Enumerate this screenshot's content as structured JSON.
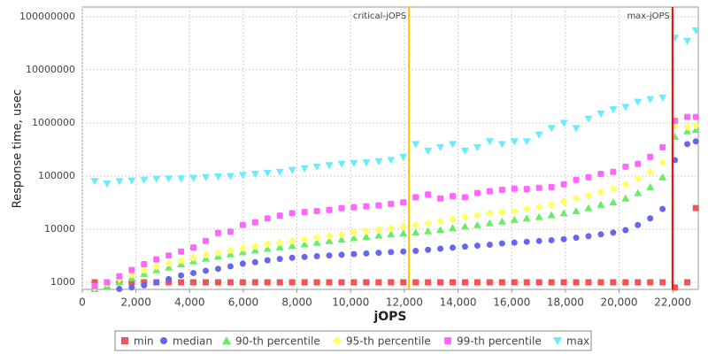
{
  "chart_data": {
    "type": "scatter",
    "x_label": "jOPS",
    "y_label": "Response time, usec",
    "log_y": true,
    "grid": true,
    "legend": "bottom",
    "xlim": [
      0,
      22950
    ],
    "ylim": [
      736,
      152000000
    ],
    "xticks": [
      0,
      {
        "value": 2000,
        "label": "2,000"
      },
      {
        "value": 4000,
        "label": "4,000"
      },
      {
        "value": 6000,
        "label": "6,000"
      },
      {
        "value": 8000,
        "label": "8,000"
      },
      {
        "value": 10000,
        "label": "10,000"
      },
      {
        "value": 12000,
        "label": "12,000"
      },
      {
        "value": 14000,
        "label": "14,000"
      },
      {
        "value": 16000,
        "label": "16,000"
      },
      {
        "value": 18000,
        "label": "18,000"
      },
      {
        "value": 20000,
        "label": "20,000"
      },
      {
        "value": 22000,
        "label": "22,000"
      }
    ],
    "yticks": [
      1000,
      10000,
      100000,
      1000000,
      10000000,
      100000000
    ],
    "markers": [
      {
        "label": "critical-jOPS",
        "value": 12170,
        "color": "#ffc800"
      },
      {
        "label": "max-jOPS",
        "value": 21990,
        "color": "#ff0000"
      }
    ],
    "x": [
      460,
      920,
      1380,
      1840,
      2300,
      2760,
      3220,
      3680,
      4140,
      4600,
      5060,
      5520,
      5980,
      6440,
      6900,
      7360,
      7820,
      8280,
      8740,
      9200,
      9660,
      10120,
      10580,
      11040,
      11500,
      11960,
      12420,
      12880,
      13340,
      13800,
      14260,
      14720,
      15180,
      15640,
      16100,
      16560,
      17020,
      17480,
      17940,
      18400,
      18860,
      19320,
      19780,
      20240,
      20700,
      21160,
      21620,
      22080,
      22540,
      22860
    ],
    "series": [
      {
        "name": "min",
        "color": "#ee5555",
        "marker": "square",
        "values": [
          1000,
          1000,
          1000,
          1000,
          1000,
          1000,
          1000,
          1000,
          1000,
          1000,
          1000,
          1000,
          1000,
          1000,
          1000,
          1000,
          1000,
          1000,
          1000,
          1000,
          1000,
          1000,
          1000,
          1000,
          1000,
          1000,
          1000,
          1000,
          1000,
          1000,
          1000,
          1000,
          1000,
          1000,
          1000,
          1000,
          1000,
          1000,
          1000,
          1000,
          1000,
          1000,
          1000,
          1000,
          1000,
          1000,
          1000,
          800,
          1000,
          25000
        ]
      },
      {
        "name": "median",
        "color": "#6666ee",
        "marker": "circle",
        "values": [
          700,
          720,
          750,
          800,
          880,
          1000,
          1150,
          1350,
          1500,
          1650,
          1800,
          2000,
          2250,
          2400,
          2600,
          2750,
          2900,
          3000,
          3100,
          3200,
          3300,
          3400,
          3500,
          3600,
          3700,
          3800,
          3900,
          4100,
          4300,
          4500,
          4700,
          4900,
          5100,
          5400,
          5600,
          5800,
          6000,
          6200,
          6500,
          6900,
          7400,
          8000,
          8600,
          9600,
          12000,
          16000,
          24000,
          200000,
          400000,
          450000
        ]
      },
      {
        "name": "90-th percentile",
        "color": "#66ee66",
        "marker": "triangle",
        "values": [
          750,
          850,
          1000,
          1200,
          1450,
          1700,
          1900,
          2200,
          2500,
          2800,
          3100,
          3400,
          3700,
          4000,
          4300,
          4600,
          4900,
          5200,
          5600,
          6000,
          6400,
          6800,
          7200,
          7600,
          8000,
          8400,
          8700,
          9200,
          9700,
          10500,
          11200,
          12000,
          13000,
          14000,
          15000,
          16000,
          17000,
          18500,
          20000,
          22000,
          25000,
          29000,
          32000,
          38000,
          48000,
          62000,
          95000,
          550000,
          700000,
          750000
        ]
      },
      {
        "name": "95-th percentile",
        "color": "#ffff66",
        "marker": "diamond",
        "values": [
          800,
          950,
          1150,
          1400,
          1700,
          2000,
          2300,
          2600,
          2900,
          3300,
          3600,
          4000,
          4400,
          4800,
          5200,
          5600,
          6000,
          6500,
          7000,
          7500,
          8000,
          8600,
          9200,
          9800,
          10500,
          11200,
          12000,
          13000,
          14000,
          15500,
          17000,
          18500,
          20000,
          21000,
          22000,
          24000,
          26000,
          29000,
          33000,
          38000,
          43000,
          50000,
          58000,
          70000,
          90000,
          120000,
          180000,
          900000,
          850000,
          900000
        ]
      },
      {
        "name": "99-th percentile",
        "color": "#ff66ff",
        "marker": "rect",
        "values": [
          850,
          1000,
          1300,
          1700,
          2200,
          2700,
          3200,
          3800,
          4500,
          6000,
          8500,
          9000,
          12000,
          13500,
          16000,
          18000,
          20000,
          21000,
          22000,
          23000,
          25000,
          26000,
          27000,
          28000,
          30000,
          32000,
          40000,
          45000,
          38000,
          42000,
          40000,
          48000,
          52000,
          55000,
          58000,
          57000,
          60000,
          62000,
          70000,
          85000,
          95000,
          110000,
          120000,
          150000,
          170000,
          230000,
          350000,
          1100000,
          1300000,
          1300000
        ]
      },
      {
        "name": "max",
        "color": "#66eeff",
        "marker": "down-triangle",
        "values": [
          80000,
          72000,
          80000,
          82000,
          85000,
          88000,
          90000,
          90000,
          92000,
          95000,
          98000,
          100000,
          105000,
          110000,
          115000,
          120000,
          130000,
          140000,
          150000,
          160000,
          170000,
          175000,
          180000,
          190000,
          200000,
          230000,
          400000,
          300000,
          350000,
          400000,
          300000,
          350000,
          450000,
          400000,
          450000,
          450000,
          600000,
          800000,
          1000000,
          800000,
          1200000,
          1500000,
          1800000,
          2000000,
          2500000,
          2800000,
          3000000,
          40000000,
          35000000,
          55000000
        ]
      }
    ]
  }
}
